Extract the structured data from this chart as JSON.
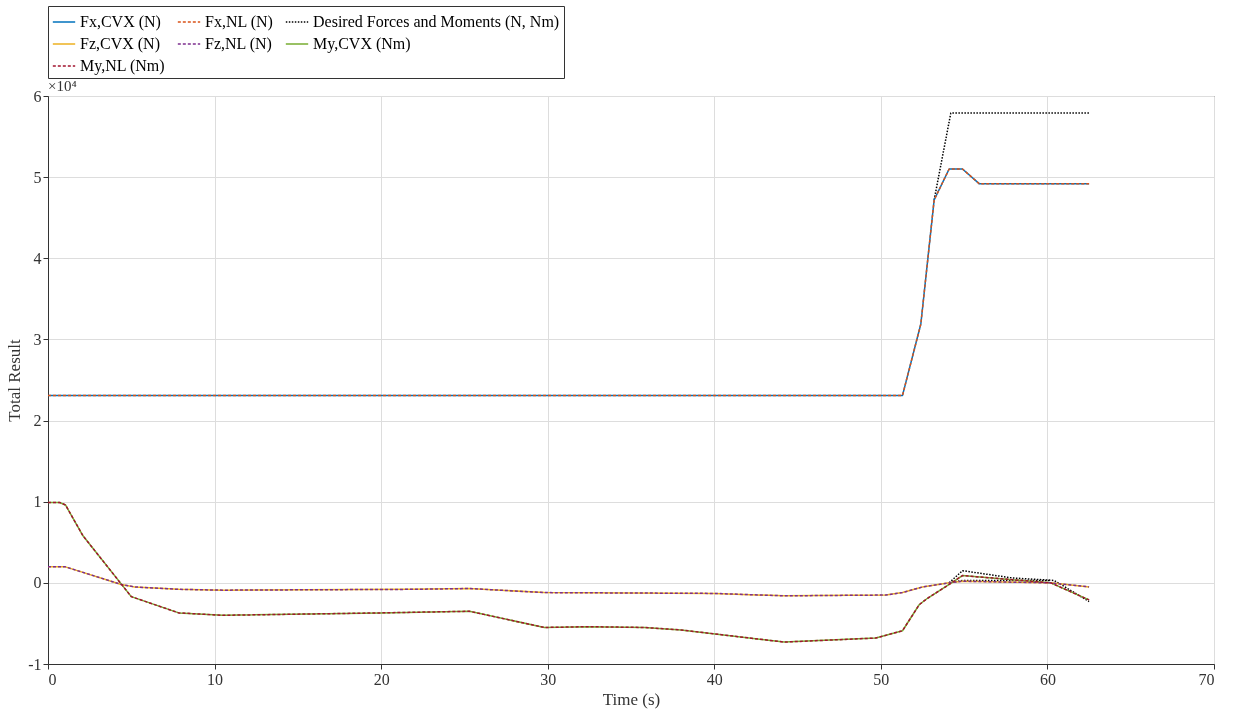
{
  "chart_data": {
    "type": "line",
    "xlabel": "Time (s)",
    "ylabel": "Total Result",
    "xlim": [
      0,
      70
    ],
    "xticks": [
      0,
      10,
      20,
      30,
      40,
      50,
      60,
      70
    ],
    "ylim": [
      -1,
      6
    ],
    "yticks": [
      -1,
      0,
      1,
      2,
      3,
      4,
      5,
      6
    ],
    "annotations": [
      "×10⁴"
    ],
    "grid": true,
    "legend": "top",
    "marker": "none",
    "series": [
      {
        "name": "Fx,CVX (N)",
        "color": "#0072bd",
        "line_style": "solid",
        "x": [
          0,
          10,
          20,
          30,
          40,
          51.3,
          52.4,
          53.2,
          54.1,
          54.9,
          55.9,
          62.5
        ],
        "values": [
          2.31,
          2.31,
          2.31,
          2.31,
          2.31,
          2.31,
          3.19,
          4.72,
          5.1,
          5.1,
          4.92,
          4.92
        ]
      },
      {
        "name": "Fx,NL (N)",
        "color": "#d95319",
        "line_style": "dashed",
        "x": [
          0,
          10,
          20,
          30,
          40,
          51.3,
          52.4,
          53.2,
          54.1,
          54.9,
          55.9,
          62.5
        ],
        "values": [
          2.31,
          2.31,
          2.31,
          2.31,
          2.31,
          2.31,
          3.19,
          4.72,
          5.1,
          5.1,
          4.92,
          4.92
        ]
      },
      {
        "name": "Desired Forces and Moments (N, Nm)",
        "color": "#000000",
        "line_style": "dotted",
        "x": [
          53.2,
          54.2,
          62.5
        ],
        "values": [
          4.72,
          5.79,
          5.79
        ]
      },
      {
        "name": "Fz,CVX (N)",
        "color": "#edb120",
        "line_style": "solid",
        "x": [
          0,
          1.0,
          4.4,
          5.2,
          7.85,
          10.5,
          21.7,
          25.3,
          29.8,
          40,
          44.2,
          50.3,
          51.3,
          52.5,
          54.1,
          54.9,
          60.2,
          62.5
        ],
        "values": [
          0.2,
          0.2,
          -0.02,
          -0.05,
          -0.08,
          -0.09,
          -0.08,
          -0.07,
          -0.12,
          -0.13,
          -0.16,
          -0.15,
          -0.12,
          -0.05,
          0,
          0.02,
          0,
          -0.05
        ]
      },
      {
        "name": "Fz,NL (N)",
        "color": "#7e2f8e",
        "line_style": "dashed",
        "x": [
          0,
          1.0,
          4.4,
          5.2,
          7.85,
          10.5,
          21.7,
          25.3,
          29.8,
          40,
          44.2,
          50.3,
          51.3,
          52.5,
          54.1,
          54.9,
          60.2,
          62.5
        ],
        "values": [
          0.2,
          0.2,
          -0.02,
          -0.05,
          -0.08,
          -0.09,
          -0.08,
          -0.07,
          -0.12,
          -0.13,
          -0.16,
          -0.15,
          -0.12,
          -0.05,
          0,
          0.02,
          0,
          -0.05
        ]
      },
      {
        "color": "#000000",
        "line_style": "dotted",
        "x": [
          54.1,
          54.9,
          60.2
        ],
        "values": [
          0,
          0.03,
          0.03
        ]
      },
      {
        "name": "My,CVX (Nm)",
        "color": "#77ac30",
        "line_style": "solid",
        "x": [
          0,
          0.7,
          1.05,
          2.1,
          5.0,
          7.85,
          10.5,
          20.0,
          25.3,
          29.8,
          32.4,
          35.8,
          38.0,
          44.2,
          49.7,
          51.3,
          52.3,
          52.8,
          54.1,
          54.9,
          60.2,
          62.5
        ],
        "values": [
          0.99,
          0.99,
          0.96,
          0.58,
          -0.17,
          -0.37,
          -0.4,
          -0.37,
          -0.35,
          -0.55,
          -0.54,
          -0.55,
          -0.58,
          -0.73,
          -0.68,
          -0.59,
          -0.27,
          -0.19,
          -0.02,
          0.09,
          0,
          -0.21
        ]
      },
      {
        "name": "My,NL (Nm)",
        "color": "#a2142f",
        "line_style": "dashed",
        "x": [
          0,
          0.7,
          1.05,
          2.1,
          5.0,
          7.85,
          10.5,
          20.0,
          25.3,
          29.8,
          32.4,
          35.8,
          38.0,
          44.2,
          49.7,
          51.3,
          52.3,
          52.8,
          54.1,
          54.9,
          60.2,
          62.5
        ],
        "values": [
          0.99,
          0.99,
          0.96,
          0.58,
          -0.17,
          -0.37,
          -0.4,
          -0.37,
          -0.35,
          -0.55,
          -0.54,
          -0.55,
          -0.58,
          -0.73,
          -0.68,
          -0.59,
          -0.27,
          -0.19,
          -0.02,
          0.09,
          0,
          -0.21
        ]
      },
      {
        "color": "#000000",
        "line_style": "dotted",
        "x": [
          54.1,
          54.9,
          57.9,
          60.4,
          62.5
        ],
        "values": [
          0,
          0.15,
          0.06,
          0.03,
          -0.23
        ]
      }
    ]
  }
}
